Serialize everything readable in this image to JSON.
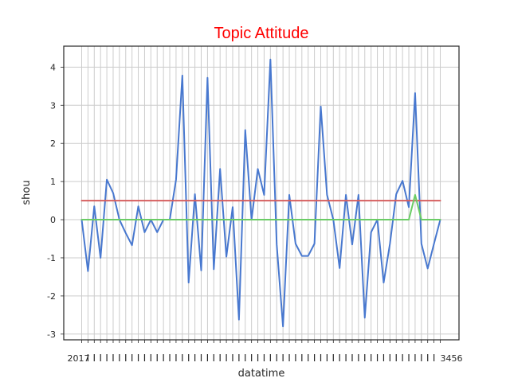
{
  "chart_data": {
    "type": "line",
    "title": "Topic Attitude",
    "xlabel": "datatime",
    "ylabel": "shou",
    "ylim": [
      -3.15,
      4.55
    ],
    "y_ticks": [
      -3,
      -2,
      -1,
      0,
      1,
      2,
      3,
      4
    ],
    "x_tick_first_label": "2017",
    "x_tick_last_label": "3456",
    "x_count": 58,
    "grid": true,
    "legend": "none",
    "colors": {
      "title": "#ff0000",
      "grid": "#cccccc",
      "frame": "#262626"
    },
    "series": [
      {
        "color": "#4878cf",
        "values": [
          0.0,
          -1.35,
          0.35,
          -1.0,
          1.05,
          0.7,
          0.0,
          -0.35,
          -0.67,
          0.35,
          -0.33,
          0.0,
          -0.33,
          0.0,
          0.0,
          1.05,
          3.78,
          -1.65,
          0.67,
          -1.33,
          3.72,
          -1.3,
          1.33,
          -0.97,
          0.33,
          -2.62,
          2.35,
          0.0,
          1.33,
          0.65,
          4.2,
          -0.65,
          -2.8,
          0.65,
          -0.63,
          -0.95,
          -0.95,
          -0.63,
          2.97,
          0.65,
          0.0,
          -1.27,
          0.65,
          -0.65,
          0.65,
          -2.57,
          -0.33,
          0.0,
          -1.65,
          -0.63,
          0.67,
          1.02,
          0.33,
          3.32,
          -0.63,
          -1.28,
          -0.63,
          0.0
        ]
      },
      {
        "color": "#d65f5f",
        "values": [
          0.5,
          0.5,
          0.5,
          0.5,
          0.5,
          0.5,
          0.5,
          0.5,
          0.5,
          0.5,
          0.5,
          0.5,
          0.5,
          0.5,
          0.5,
          0.5,
          0.5,
          0.5,
          0.5,
          0.5,
          0.5,
          0.5,
          0.5,
          0.5,
          0.5,
          0.5,
          0.5,
          0.5,
          0.5,
          0.5,
          0.5,
          0.5,
          0.5,
          0.5,
          0.5,
          0.5,
          0.5,
          0.5,
          0.5,
          0.5,
          0.5,
          0.5,
          0.5,
          0.5,
          0.5,
          0.5,
          0.5,
          0.5,
          0.5,
          0.5,
          0.5,
          0.5,
          0.5,
          0.5,
          0.5,
          0.5,
          0.5,
          0.5
        ]
      },
      {
        "color": "#6acc65",
        "values": [
          0,
          0,
          0,
          0,
          0,
          0,
          0,
          0,
          0,
          0,
          0,
          0,
          0,
          0,
          0,
          0,
          0,
          0,
          0,
          0,
          0,
          0,
          0,
          0,
          0,
          0,
          0,
          0,
          0,
          0,
          0,
          0,
          0,
          0,
          0,
          0,
          0,
          0,
          0,
          0,
          0,
          0,
          0,
          0,
          0,
          0,
          0,
          0,
          0,
          0,
          0,
          0,
          0,
          0.65,
          0,
          0,
          0,
          0
        ]
      }
    ]
  }
}
